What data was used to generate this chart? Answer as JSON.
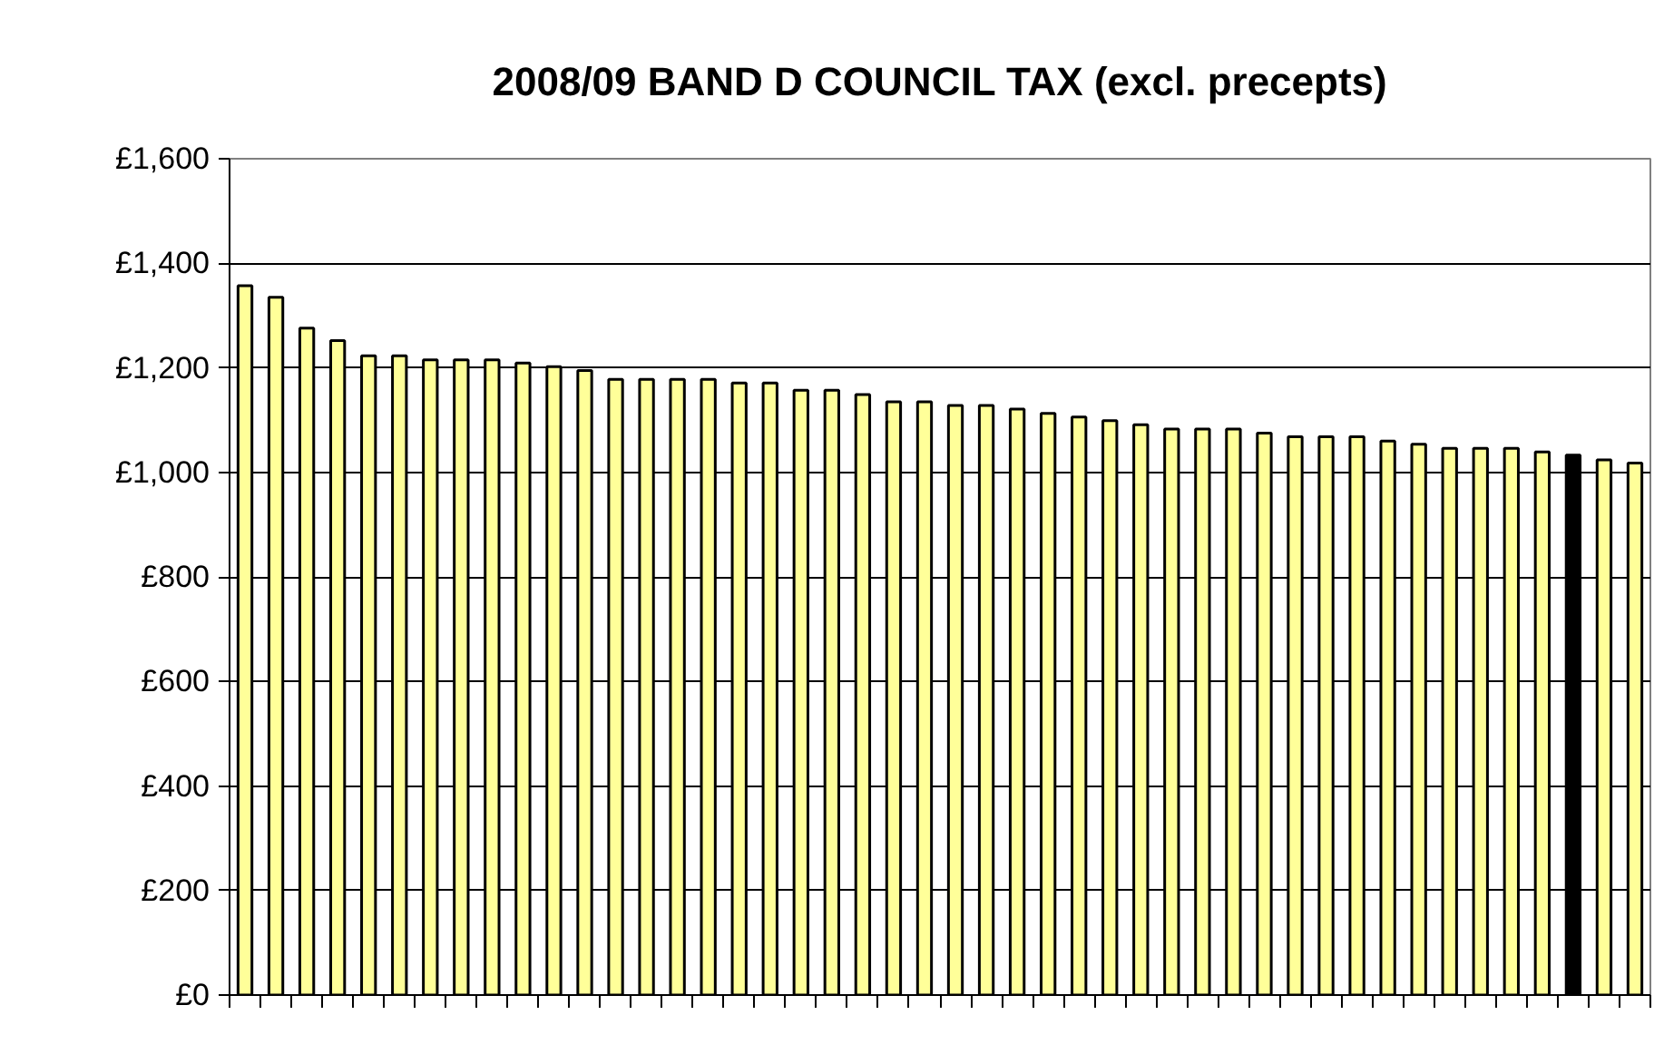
{
  "chart_data": {
    "type": "bar",
    "title": "2008/09 BAND D COUNCIL TAX (excl. precepts)",
    "categories": [
      null,
      null,
      null,
      null,
      null,
      null,
      null,
      null,
      null,
      null,
      null,
      null,
      null,
      null,
      null,
      null,
      null,
      null,
      null,
      null,
      null,
      null,
      null,
      null,
      null,
      null,
      null,
      null,
      null,
      null,
      null,
      null,
      null,
      null,
      null,
      null,
      null,
      null,
      null,
      null,
      null,
      null,
      null,
      null,
      null,
      null
    ],
    "values": [
      1357,
      1335,
      1276,
      1252,
      1223,
      1223,
      1215,
      1215,
      1215,
      1209,
      1202,
      1195,
      1178,
      1178,
      1178,
      1178,
      1171,
      1171,
      1157,
      1157,
      1149,
      1135,
      1135,
      1128,
      1128,
      1121,
      1113,
      1106,
      1099,
      1091,
      1083,
      1083,
      1083,
      1075,
      1068,
      1068,
      1068,
      1060,
      1054,
      1046,
      1046,
      1046,
      1039,
      1033,
      1024,
      1018
    ],
    "colors": [
      "#ffff99",
      "#ffff99",
      "#ffff99",
      "#ffff99",
      "#ffff99",
      "#ffff99",
      "#ffff99",
      "#ffff99",
      "#ffff99",
      "#ffff99",
      "#ffff99",
      "#ffff99",
      "#ffff99",
      "#ffff99",
      "#ffff99",
      "#ffff99",
      "#ffff99",
      "#ffff99",
      "#ffff99",
      "#ffff99",
      "#ffff99",
      "#ffff99",
      "#ffff99",
      "#ffff99",
      "#ffff99",
      "#ffff99",
      "#ffff99",
      "#ffff99",
      "#ffff99",
      "#ffff99",
      "#ffff99",
      "#ffff99",
      "#ffff99",
      "#ffff99",
      "#ffff99",
      "#ffff99",
      "#ffff99",
      "#ffff99",
      "#ffff99",
      "#ffff99",
      "#ffff99",
      "#ffff99",
      "#ffff99",
      "#000000",
      "#ffff99",
      "#ffff99"
    ],
    "ylim": [
      0,
      1600
    ],
    "yticks": [
      {
        "value": 0,
        "label": "£0"
      },
      {
        "value": 200,
        "label": "£200"
      },
      {
        "value": 400,
        "label": "£400"
      },
      {
        "value": 600,
        "label": "£600"
      },
      {
        "value": 800,
        "label": "£800"
      },
      {
        "value": 1000,
        "label": "£1,000"
      },
      {
        "value": 1200,
        "label": "£1,200"
      },
      {
        "value": 1400,
        "label": "£1,400"
      },
      {
        "value": 1600,
        "label": "£1,600"
      }
    ],
    "grid": "y"
  }
}
